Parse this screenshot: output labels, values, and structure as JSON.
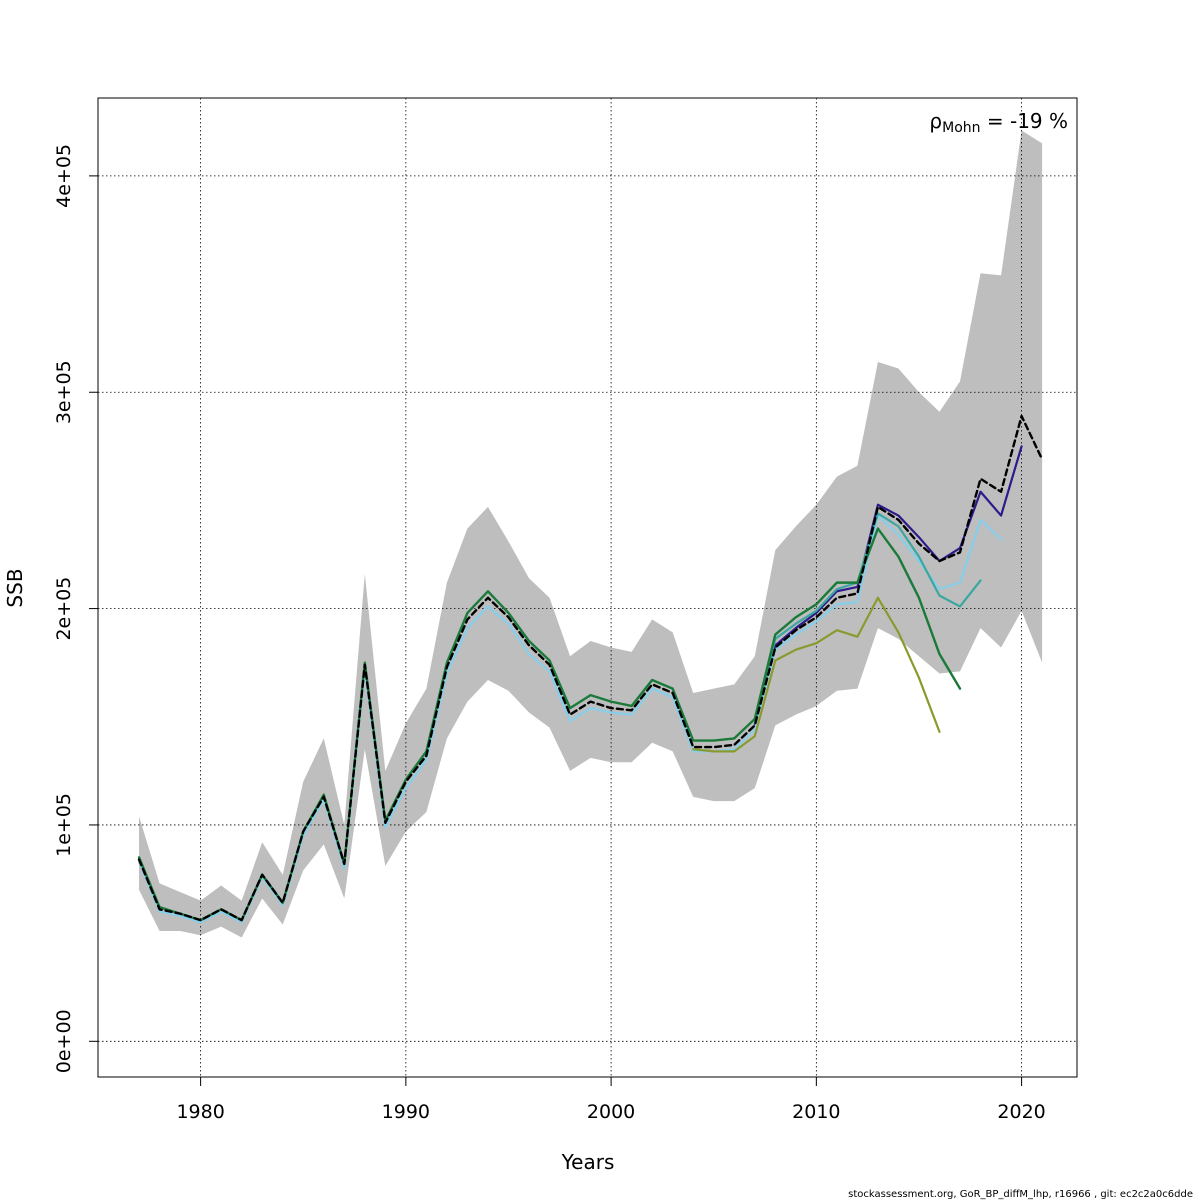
{
  "chart_data": {
    "type": "line",
    "xlabel": "Years",
    "ylabel": "SSB",
    "xlim": [
      1975,
      2022.7
    ],
    "ylim": [
      -16500,
      436000
    ],
    "x_ticks": [
      1980,
      1990,
      2000,
      2010,
      2020
    ],
    "y_ticks": [
      0,
      100000,
      200000,
      300000,
      400000
    ],
    "y_tick_labels": [
      "0e+00",
      "1e+05",
      "2e+05",
      "3e+05",
      "4e+05"
    ],
    "grid": true,
    "annotation": {
      "rho_symbol": "ρ",
      "rho_sub": "Mohn",
      "rho_value": " = -19 %"
    },
    "footer": "stockassessment.org, GoR_BP_diffM_lhp, r16966 , git: ec2c2a0c6dde",
    "band": {
      "color": "#bebebe",
      "x": [
        1977,
        1978,
        1979,
        1980,
        1981,
        1982,
        1983,
        1984,
        1985,
        1986,
        1987,
        1988,
        1989,
        1990,
        1991,
        1992,
        1993,
        1994,
        1995,
        1996,
        1997,
        1998,
        1999,
        2000,
        2001,
        2002,
        2003,
        2004,
        2005,
        2006,
        2007,
        2008,
        2009,
        2010,
        2011,
        2012,
        2013,
        2014,
        2015,
        2016,
        2017,
        2018,
        2019,
        2020,
        2021
      ],
      "lower": [
        70000,
        51000,
        51000,
        49000,
        53000,
        48000,
        66000,
        54000,
        79000,
        91000,
        66000,
        135000,
        81000,
        97000,
        106000,
        140000,
        157000,
        167000,
        162000,
        152000,
        145000,
        125000,
        131000,
        129000,
        129000,
        138000,
        134000,
        113000,
        111000,
        111000,
        117000,
        146000,
        151000,
        155000,
        162000,
        163000,
        191000,
        186000,
        178000,
        170000,
        171000,
        191000,
        182000,
        199000,
        175000
      ],
      "upper": [
        104000,
        73000,
        69000,
        65000,
        72000,
        65000,
        92000,
        77000,
        120000,
        140000,
        100000,
        216000,
        125000,
        147000,
        163000,
        212000,
        237000,
        247000,
        231000,
        214000,
        205000,
        178000,
        185000,
        182000,
        180000,
        195000,
        189000,
        161000,
        163000,
        165000,
        178000,
        227000,
        238000,
        248000,
        261000,
        266000,
        314000,
        311000,
        300000,
        291000,
        305000,
        355000,
        354000,
        421000,
        415000
      ]
    },
    "series": [
      {
        "color": "#000000",
        "dashed": true,
        "width": 2.4,
        "x": [
          1977,
          1978,
          1979,
          1980,
          1981,
          1982,
          1983,
          1984,
          1985,
          1986,
          1987,
          1988,
          1989,
          1990,
          1991,
          1992,
          1993,
          1994,
          1995,
          1996,
          1997,
          1998,
          1999,
          2000,
          2001,
          2002,
          2003,
          2004,
          2005,
          2006,
          2007,
          2008,
          2009,
          2010,
          2011,
          2012,
          2013,
          2014,
          2015,
          2016,
          2017,
          2018,
          2019,
          2020,
          2021
        ],
        "values": [
          84000,
          61000,
          59000,
          56000,
          61000,
          56000,
          77000,
          64000,
          97000,
          113000,
          82000,
          174000,
          101000,
          120000,
          132000,
          173000,
          195000,
          205000,
          196000,
          183000,
          174000,
          151000,
          157000,
          154000,
          153000,
          165000,
          161000,
          136000,
          136000,
          137000,
          146000,
          182000,
          190000,
          196000,
          205000,
          207000,
          247000,
          241000,
          230000,
          222000,
          226000,
          260000,
          254000,
          289000,
          269000
        ]
      },
      {
        "color": "#2e1a8a",
        "dashed": false,
        "width": 2.2,
        "x": [
          2007,
          2008,
          2009,
          2010,
          2011,
          2012,
          2013,
          2014,
          2015,
          2016,
          2017,
          2018,
          2019,
          2020
        ],
        "values": [
          146000,
          183000,
          191000,
          198000,
          208000,
          210000,
          248000,
          243000,
          233000,
          222000,
          228000,
          254000,
          243000,
          275000
        ]
      },
      {
        "color": "#87ceeb",
        "dashed": false,
        "width": 2.2,
        "x": [
          1977,
          1978,
          1979,
          1980,
          1981,
          1982,
          1983,
          1984,
          1985,
          1986,
          1987,
          1988,
          1989,
          1990,
          1991,
          1992,
          1993,
          1994,
          1995,
          1996,
          1997,
          1998,
          1999,
          2000,
          2001,
          2002,
          2003,
          2004,
          2005,
          2006,
          2007,
          2008,
          2009,
          2010,
          2011,
          2012,
          2013,
          2014,
          2015,
          2016,
          2017,
          2018,
          2019
        ],
        "values": [
          83000,
          60000,
          58000,
          55000,
          60000,
          55000,
          76000,
          63000,
          95000,
          112000,
          80000,
          172000,
          99000,
          117000,
          130000,
          170000,
          191000,
          201000,
          193000,
          179000,
          171000,
          148000,
          154000,
          152000,
          151000,
          163000,
          159000,
          134000,
          134000,
          135000,
          144000,
          181000,
          188000,
          194000,
          202000,
          203000,
          243000,
          234000,
          222000,
          209000,
          212000,
          241000,
          232000
        ]
      },
      {
        "color": "#3aa7a0",
        "dashed": false,
        "width": 2.2,
        "x": [
          2007,
          2008,
          2009,
          2010,
          2011,
          2012,
          2013,
          2014,
          2015,
          2016,
          2017,
          2018
        ],
        "values": [
          147000,
          186000,
          193000,
          199000,
          209000,
          212000,
          244000,
          238000,
          224000,
          206000,
          201000,
          213000
        ]
      },
      {
        "color": "#1a7a3a",
        "dashed": false,
        "width": 2.4,
        "x": [
          1977,
          1978,
          1979,
          1980,
          1981,
          1982,
          1983,
          1984,
          1985,
          1986,
          1987,
          1988,
          1989,
          1990,
          1991,
          1992,
          1993,
          1994,
          1995,
          1996,
          1997,
          1998,
          1999,
          2000,
          2001,
          2002,
          2003,
          2004,
          2005,
          2006,
          2007,
          2008,
          2009,
          2010,
          2011,
          2012,
          2013,
          2014,
          2015,
          2016,
          2017
        ],
        "values": [
          85000,
          62000,
          59000,
          56000,
          61000,
          56000,
          77000,
          64000,
          97000,
          114000,
          82000,
          175000,
          102000,
          121000,
          134000,
          175000,
          198000,
          208000,
          198000,
          185000,
          176000,
          154000,
          160000,
          157000,
          155000,
          167000,
          163000,
          139000,
          139000,
          140000,
          149000,
          188000,
          196000,
          202000,
          212000,
          212000,
          237000,
          224000,
          205000,
          179000,
          163000
        ]
      },
      {
        "color": "#8b9a2e",
        "dashed": false,
        "width": 2.2,
        "x": [
          2004,
          2005,
          2006,
          2007,
          2008,
          2009,
          2010,
          2011,
          2012,
          2013,
          2014,
          2015,
          2016
        ],
        "values": [
          135000,
          134000,
          134000,
          141000,
          176000,
          181000,
          184000,
          190000,
          187000,
          205000,
          189000,
          168000,
          143000
        ]
      }
    ]
  }
}
